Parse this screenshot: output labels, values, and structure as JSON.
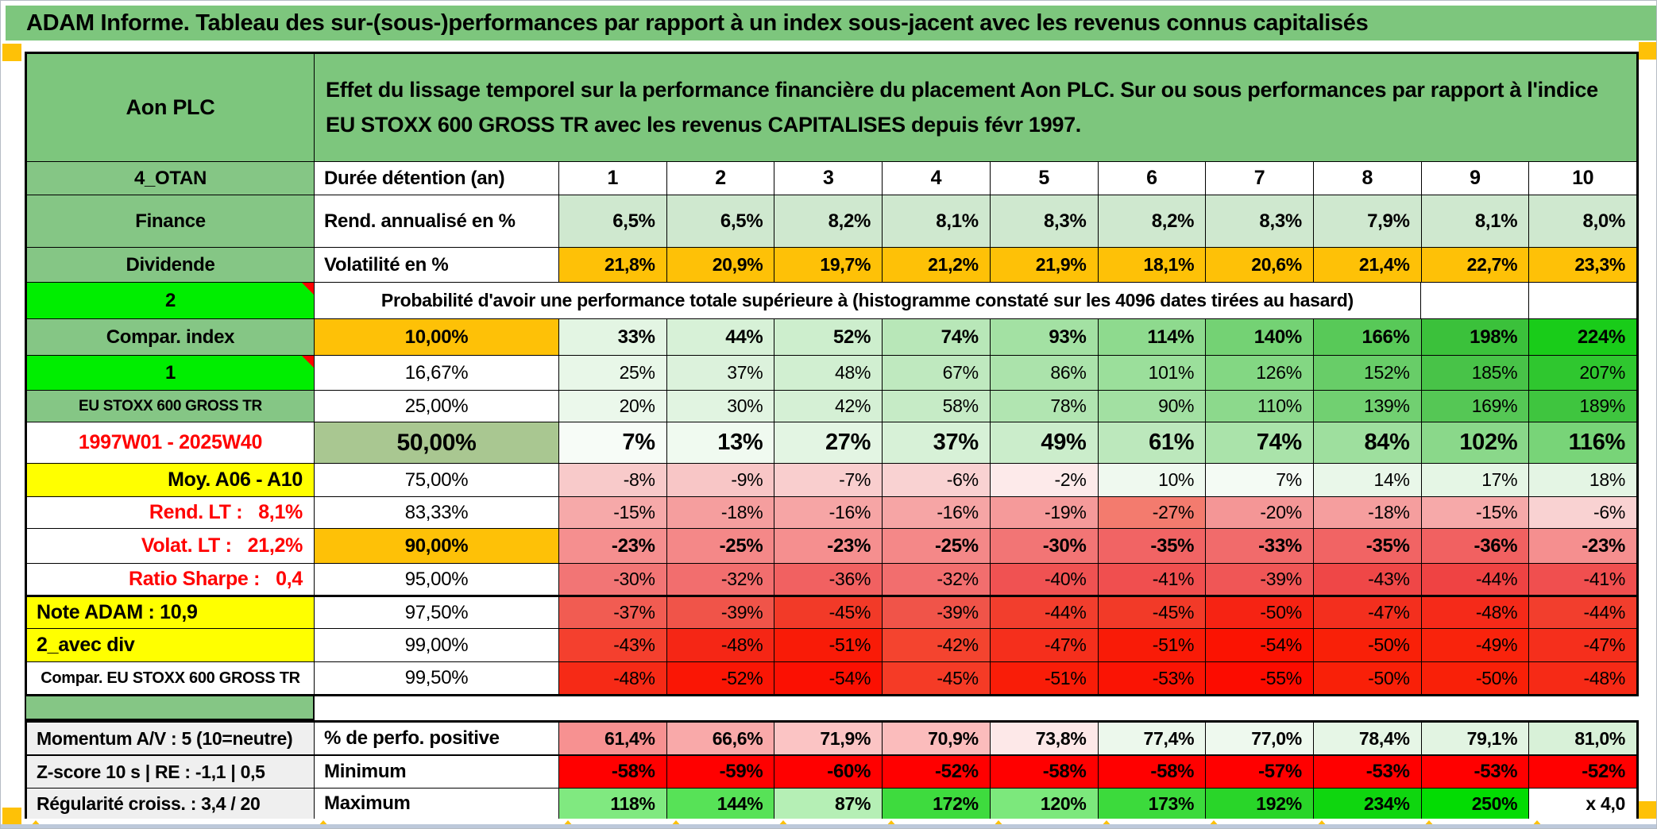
{
  "title": "ADAM Informe. Tableau des sur-(sous-)performances par rapport à un index sous-jacent avec les revenus connus capitalisés",
  "identity": {
    "name": "Aon PLC",
    "description": "Effet du lissage temporel sur la performance financière du placement Aon PLC. Sur ou sous performances par rapport à l'indice EU STOXX 600 GROSS TR avec les revenus CAPITALISES depuis févr 1997."
  },
  "colors": {
    "band_green": "#7dc67d",
    "label_green": "#85c685",
    "bright_green": "#00ee00",
    "orange": "#fec107",
    "yellow": "#ffff00",
    "sage": "#a9c791",
    "gray_label": "#efefef",
    "light_green_row": "#cfe8cf",
    "min_red": "#ff0000",
    "marker_red": "#ff0000",
    "tick_orange": "#ffc107",
    "red_text": "#ff0000"
  },
  "columns": [
    "1",
    "2",
    "3",
    "4",
    "5",
    "6",
    "7",
    "8",
    "9",
    "10"
  ],
  "rows": {
    "duration": {
      "a": "4_OTAN",
      "b": "Durée détention (an)"
    },
    "annual_return": {
      "a": "Finance",
      "b": "Rend. annualisé en %",
      "values": [
        "6,5%",
        "6,5%",
        "8,2%",
        "8,1%",
        "8,3%",
        "8,2%",
        "8,3%",
        "7,9%",
        "8,1%",
        "8,0%"
      ]
    },
    "volatility": {
      "a": "Dividende",
      "b": "Volatilité en %",
      "values": [
        "21,8%",
        "20,9%",
        "19,7%",
        "21,2%",
        "21,9%",
        "18,1%",
        "20,6%",
        "21,4%",
        "22,7%",
        "23,3%"
      ]
    },
    "probability_note": {
      "a": "2",
      "text": "Probabilité d'avoir une performance totale supérieure à (histogramme constaté sur les 4096 dates tirées au hasard)"
    },
    "probability": [
      {
        "a": "Compar. index",
        "b": "10,00%",
        "values": [
          "33%",
          "44%",
          "52%",
          "74%",
          "93%",
          "114%",
          "140%",
          "166%",
          "198%",
          "224%"
        ],
        "colors": [
          "#e3f5e3",
          "#d7f1d7",
          "#cdeecd",
          "#b8e7b8",
          "#a3e1a3",
          "#8eda8e",
          "#74d274",
          "#58c958",
          "#3bc13b",
          "#19cc19"
        ]
      },
      {
        "a": "1",
        "b": "16,67%",
        "values": [
          "25%",
          "37%",
          "48%",
          "67%",
          "86%",
          "101%",
          "126%",
          "152%",
          "185%",
          "207%"
        ],
        "colors": [
          "#e8f7e8",
          "#dcf2dc",
          "#d1efd1",
          "#bfe9bf",
          "#abe3ab",
          "#9bdf9b",
          "#83d783",
          "#68cd68",
          "#48c348",
          "#2fc72f"
        ]
      },
      {
        "a": "EU STOXX 600 GROSS TR",
        "b": "25,00%",
        "values": [
          "20%",
          "30%",
          "42%",
          "58%",
          "78%",
          "90%",
          "110%",
          "139%",
          "169%",
          "189%"
        ],
        "colors": [
          "#ebf8eb",
          "#e1f4e1",
          "#d5f0d5",
          "#c6ebc6",
          "#b1e5b1",
          "#a2e0a2",
          "#8cd98c",
          "#71d071",
          "#55c755",
          "#3fc53f"
        ]
      },
      {
        "a": "1997W01 - 2025W40",
        "b": "50,00%",
        "values": [
          "7%",
          "13%",
          "27%",
          "37%",
          "49%",
          "61%",
          "74%",
          "84%",
          "102%",
          "116%"
        ],
        "colors": [
          "#f7fcf7",
          "#f0faf0",
          "#e3f5e3",
          "#d7f1d7",
          "#cbedcb",
          "#bce8bc",
          "#aae3aa",
          "#9edf9e",
          "#8ad88a",
          "#78d478"
        ]
      },
      {
        "a": "Moy. A06 - A10",
        "b": "75,00%",
        "values": [
          "-8%",
          "-9%",
          "-7%",
          "-6%",
          "-2%",
          "10%",
          "7%",
          "14%",
          "17%",
          "18%"
        ],
        "colors": [
          "#f8caca",
          "#f8c6c6",
          "#f9cece",
          "#f9d2d2",
          "#fdeaea",
          "#eff9ef",
          "#f4fbf4",
          "#e9f7e9",
          "#e5f6e5",
          "#e4f5e4"
        ]
      },
      {
        "a": "Rend. LT :   8,1%",
        "b": "83,33%",
        "values": [
          "-15%",
          "-18%",
          "-16%",
          "-16%",
          "-19%",
          "-27%",
          "-20%",
          "-18%",
          "-15%",
          "-6%"
        ],
        "colors": [
          "#f6a9a9",
          "#f59e9e",
          "#f6a5a5",
          "#f6a5a5",
          "#f59a9a",
          "#f37b6e",
          "#f49696",
          "#f59e9e",
          "#f6a9a9",
          "#f9d2d2"
        ]
      },
      {
        "a": "Volat. LT :   21,2%",
        "b": "90,00%",
        "values": [
          "-23%",
          "-25%",
          "-23%",
          "-25%",
          "-30%",
          "-35%",
          "-33%",
          "-35%",
          "-36%",
          "-23%"
        ],
        "colors": [
          "#f58f8f",
          "#f48888",
          "#f58f8f",
          "#f48888",
          "#f27575",
          "#f16464",
          "#f16b6b",
          "#f16464",
          "#f16161",
          "#f58f8f"
        ]
      },
      {
        "a": "Ratio Sharpe :   0,4",
        "b": "95,00%",
        "values": [
          "-30%",
          "-32%",
          "-36%",
          "-32%",
          "-40%",
          "-41%",
          "-39%",
          "-43%",
          "-44%",
          "-41%"
        ],
        "colors": [
          "#f27575",
          "#f26e6e",
          "#f16161",
          "#f26e6e",
          "#f05252",
          "#f04f4f",
          "#f05656",
          "#ef4747",
          "#ef4343",
          "#f04f4f"
        ]
      },
      {
        "a": "Note ADAM : 10,9",
        "b": "97,50%",
        "values": [
          "-37%",
          "-39%",
          "-45%",
          "-39%",
          "-44%",
          "-45%",
          "-50%",
          "-47%",
          "-48%",
          "-44%"
        ],
        "colors": [
          "#f15c52",
          "#f05449",
          "#f23a28",
          "#f05449",
          "#f23e2d",
          "#f23a28",
          "#f62313",
          "#f32f1e",
          "#f52a19",
          "#f23e2d"
        ]
      },
      {
        "a": "2_avec div",
        "b": "99,00%",
        "values": [
          "-43%",
          "-48%",
          "-51%",
          "-42%",
          "-47%",
          "-51%",
          "-54%",
          "-50%",
          "-49%",
          "-47%"
        ],
        "colors": [
          "#f4402e",
          "#f52615",
          "#f91b07",
          "#f4442f",
          "#f52f1c",
          "#f91b07",
          "#fb1302",
          "#f92008",
          "#f9230c",
          "#f52f1c"
        ]
      },
      {
        "a": "Compar. EU STOXX 600 GROSS TR",
        "b": "99,50%",
        "values": [
          "-48%",
          "-52%",
          "-54%",
          "-45%",
          "-51%",
          "-53%",
          "-55%",
          "-50%",
          "-50%",
          "-48%"
        ],
        "colors": [
          "#f62a16",
          "#fa1605",
          "#fb1002",
          "#f53b26",
          "#f91d08",
          "#fa1404",
          "#fc0c00",
          "#f92008",
          "#f92008",
          "#f62a16"
        ]
      }
    ],
    "summary": [
      {
        "a": "Momentum A/V : 5 (10=neutre)",
        "b": "% de perfo. positive",
        "values": [
          "61,4%",
          "66,6%",
          "71,9%",
          "70,9%",
          "73,8%",
          "77,4%",
          "77,0%",
          "78,4%",
          "79,1%",
          "81,0%"
        ],
        "colors": [
          "#f79191",
          "#f9a9a9",
          "#fbc4c4",
          "#fbbcbc",
          "#fde8e8",
          "#ecf8ec",
          "#eef9ee",
          "#e6f6e6",
          "#e2f4e2",
          "#d8f1d8"
        ]
      },
      {
        "a": "Z-score 10 s | RE : -1,1 | 0,5",
        "b": "Minimum",
        "values": [
          "-58%",
          "-59%",
          "-60%",
          "-52%",
          "-58%",
          "-58%",
          "-57%",
          "-53%",
          "-53%",
          "-52%"
        ],
        "colors": [
          "#ff0000",
          "#ff0000",
          "#ff0000",
          "#ff0000",
          "#ff0000",
          "#ff0000",
          "#ff0000",
          "#ff0000",
          "#ff0000",
          "#ff0000"
        ]
      },
      {
        "a": "Régularité croiss. : 3,4 / 20",
        "b": "Maximum",
        "values": [
          "118%",
          "144%",
          "87%",
          "172%",
          "120%",
          "173%",
          "192%",
          "234%",
          "250%",
          "x 4,0"
        ],
        "colors": [
          "#80e980",
          "#57e257",
          "#b5efb5",
          "#3edb3e",
          "#7ce87c",
          "#3cda3c",
          "#29d529",
          "#0fd60f",
          "#03dc03",
          "#ffffff"
        ]
      }
    ]
  }
}
